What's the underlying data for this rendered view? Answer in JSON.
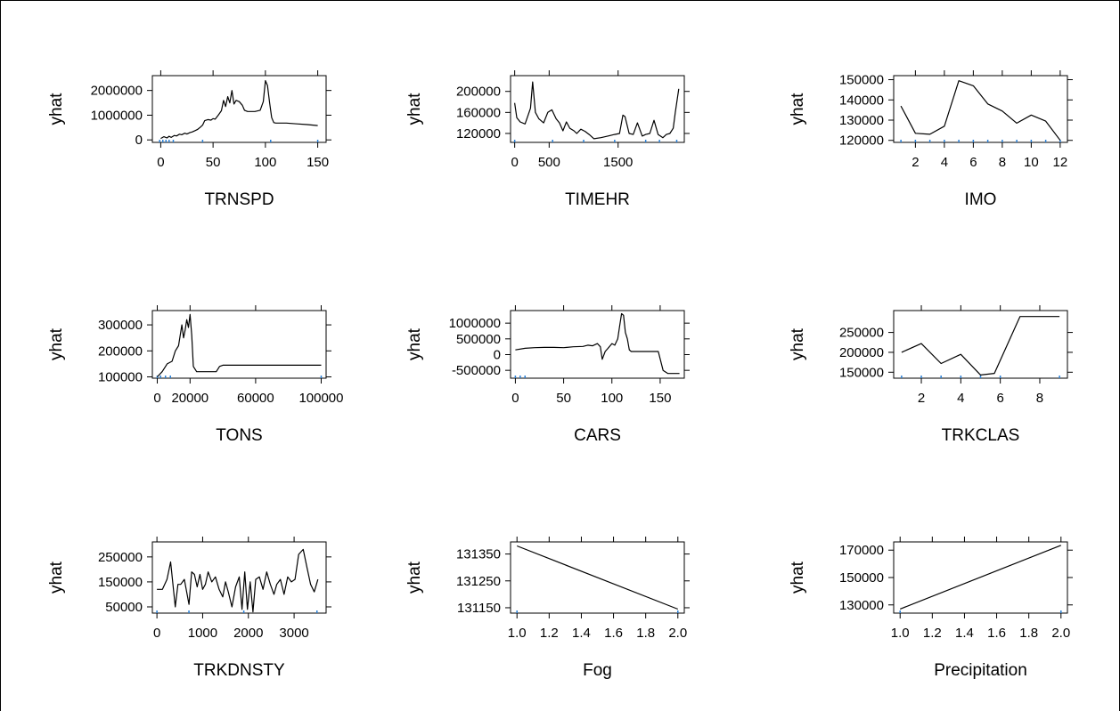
{
  "chart_data": [
    {
      "type": "line",
      "xlabel": "TRNSPD",
      "ylabel": "yhat",
      "xlim": [
        -8,
        158
      ],
      "ylim": [
        -100000,
        2600000
      ],
      "xticks": [
        0,
        50,
        100,
        150
      ],
      "xticklabels": [
        "0",
        "50",
        "100",
        "150"
      ],
      "yticks": [
        0,
        1000000,
        2000000
      ],
      "yticklabels": [
        "0",
        "1000000",
        "2000000"
      ],
      "x": [
        0,
        3,
        6,
        8,
        10,
        13,
        15,
        18,
        20,
        23,
        25,
        28,
        30,
        33,
        35,
        38,
        40,
        42,
        45,
        48,
        50,
        52,
        55,
        58,
        60,
        62,
        64,
        66,
        68,
        70,
        72,
        75,
        78,
        80,
        83,
        86,
        90,
        95,
        98,
        100,
        102,
        104,
        106,
        108,
        110,
        115,
        120,
        130,
        140,
        150
      ],
      "y": [
        60000,
        130000,
        80000,
        150000,
        100000,
        180000,
        160000,
        230000,
        210000,
        270000,
        240000,
        300000,
        320000,
        380000,
        420000,
        520000,
        600000,
        780000,
        820000,
        800000,
        860000,
        840000,
        1000000,
        1180000,
        1600000,
        1350000,
        1750000,
        1500000,
        2000000,
        1450000,
        1600000,
        1550000,
        1400000,
        1200000,
        1150000,
        1150000,
        1150000,
        1200000,
        1550000,
        2400000,
        2200000,
        1500000,
        900000,
        700000,
        680000,
        680000,
        680000,
        650000,
        620000,
        580000
      ],
      "rug": [
        -1,
        2,
        5,
        8,
        12,
        40,
        105,
        150
      ]
    },
    {
      "type": "line",
      "xlabel": "TIMEHR",
      "ylabel": "yhat",
      "xlim": [
        -60,
        2460
      ],
      "ylim": [
        103000,
        230000
      ],
      "xticks": [
        0,
        500,
        1500
      ],
      "xticklabels": [
        "0",
        "500",
        "1500"
      ],
      "yticks": [
        120000,
        160000,
        200000
      ],
      "yticklabels": [
        "120000",
        "160000",
        "200000"
      ],
      "x": [
        0,
        30,
        80,
        150,
        230,
        260,
        300,
        350,
        420,
        480,
        540,
        600,
        650,
        700,
        750,
        800,
        860,
        900,
        960,
        1020,
        1080,
        1150,
        1250,
        1350,
        1450,
        1520,
        1570,
        1600,
        1660,
        1720,
        1780,
        1850,
        1900,
        1960,
        2020,
        2080,
        2150,
        2200,
        2250,
        2300,
        2330,
        2380
      ],
      "y": [
        178000,
        150000,
        142000,
        138000,
        168000,
        218000,
        160000,
        148000,
        140000,
        160000,
        165000,
        148000,
        140000,
        125000,
        142000,
        130000,
        125000,
        120000,
        128000,
        124000,
        118000,
        110000,
        112000,
        115000,
        118000,
        120000,
        155000,
        152000,
        120000,
        118000,
        140000,
        115000,
        118000,
        120000,
        145000,
        118000,
        112000,
        118000,
        120000,
        130000,
        160000,
        205000
      ],
      "rug": [
        0,
        550,
        1000,
        1450,
        1900,
        2100,
        2350
      ]
    },
    {
      "type": "line",
      "xlabel": "IMO",
      "ylabel": "yhat",
      "xlim": [
        0.5,
        12.5
      ],
      "ylim": [
        119000,
        152000
      ],
      "xticks": [
        2,
        4,
        6,
        8,
        10,
        12
      ],
      "xticklabels": [
        "2",
        "4",
        "6",
        "8",
        "10",
        "12"
      ],
      "yticks": [
        120000,
        130000,
        140000,
        150000
      ],
      "yticklabels": [
        "120000",
        "130000",
        "140000",
        "150000"
      ],
      "x": [
        1,
        2,
        3,
        4,
        5,
        6,
        7,
        8,
        9,
        10,
        11,
        12
      ],
      "y": [
        137000,
        123500,
        123000,
        127000,
        149500,
        147000,
        138000,
        134500,
        128500,
        132500,
        129500,
        120000
      ],
      "rug": [
        1,
        2,
        3,
        4,
        5,
        6,
        7,
        8,
        9,
        10,
        11,
        12
      ]
    },
    {
      "type": "line",
      "xlabel": "TONS",
      "ylabel": "yhat",
      "xlim": [
        -3000,
        103000
      ],
      "ylim": [
        95000,
        355000
      ],
      "xticks": [
        0,
        20000,
        60000,
        100000
      ],
      "xticklabels": [
        "0",
        "20000",
        "60000",
        "100000"
      ],
      "yticks": [
        100000,
        200000,
        300000
      ],
      "yticklabels": [
        "100000",
        "200000",
        "300000"
      ],
      "x": [
        0,
        3000,
        6000,
        9000,
        11000,
        13000,
        15000,
        16000,
        17000,
        18000,
        19000,
        20000,
        21000,
        22000,
        24000,
        28000,
        32000,
        36000,
        38000,
        40000,
        50000,
        60000,
        80000,
        100000
      ],
      "y": [
        100000,
        120000,
        150000,
        160000,
        200000,
        220000,
        300000,
        250000,
        280000,
        320000,
        290000,
        340000,
        260000,
        140000,
        120000,
        120000,
        120000,
        120000,
        140000,
        145000,
        145000,
        145000,
        145000,
        145000
      ],
      "rug": [
        0,
        2000,
        5000,
        8000,
        100000
      ]
    },
    {
      "type": "line",
      "xlabel": "CARS",
      "ylabel": "yhat",
      "xlim": [
        -5,
        175
      ],
      "ylim": [
        -750000,
        1400000
      ],
      "xticks": [
        0,
        50,
        100,
        150
      ],
      "xticklabels": [
        "0",
        "50",
        "100",
        "150"
      ],
      "yticks": [
        -500000,
        0,
        500000,
        1000000
      ],
      "yticklabels": [
        "-500000",
        "0",
        "500000",
        "1000000"
      ],
      "x": [
        0,
        10,
        20,
        30,
        40,
        50,
        60,
        70,
        75,
        80,
        85,
        88,
        90,
        93,
        96,
        100,
        103,
        106,
        108,
        110,
        112,
        114,
        116,
        118,
        120,
        130,
        140,
        148,
        153,
        158,
        165,
        170
      ],
      "y": [
        150000,
        200000,
        220000,
        230000,
        230000,
        220000,
        250000,
        260000,
        300000,
        280000,
        350000,
        250000,
        -150000,
        100000,
        200000,
        350000,
        300000,
        500000,
        900000,
        1300000,
        1250000,
        700000,
        500000,
        150000,
        100000,
        100000,
        100000,
        100000,
        -500000,
        -600000,
        -600000,
        -600000
      ],
      "rug": [
        0,
        5,
        10
      ]
    },
    {
      "type": "line",
      "xlabel": "TRKCLAS",
      "ylabel": "yhat",
      "xlim": [
        0.6,
        9.4
      ],
      "ylim": [
        135000,
        305000
      ],
      "xticks": [
        2,
        4,
        6,
        8
      ],
      "xticklabels": [
        "2",
        "4",
        "6",
        "8"
      ],
      "yticks": [
        150000,
        200000,
        250000
      ],
      "yticklabels": [
        "150000",
        "200000",
        "250000"
      ],
      "x": [
        1,
        2,
        3,
        4,
        5,
        5.7,
        7,
        8,
        9
      ],
      "y": [
        200000,
        222000,
        172000,
        195000,
        143000,
        147000,
        290000,
        290000,
        290000
      ],
      "rug": [
        1,
        2,
        3,
        4,
        5,
        6,
        9
      ]
    },
    {
      "type": "line",
      "xlabel": "TRKDNSTY",
      "ylabel": "yhat",
      "xlim": [
        -100,
        3700
      ],
      "ylim": [
        25000,
        310000
      ],
      "xticks": [
        0,
        1000,
        2000,
        3000
      ],
      "xticklabels": [
        "0",
        "1000",
        "2000",
        "3000"
      ],
      "yticks": [
        50000,
        150000,
        250000
      ],
      "yticklabels": [
        "50000",
        "150000",
        "250000"
      ],
      "x": [
        0,
        120,
        220,
        300,
        400,
        460,
        520,
        600,
        700,
        760,
        820,
        880,
        940,
        1000,
        1060,
        1120,
        1200,
        1280,
        1360,
        1440,
        1500,
        1560,
        1640,
        1720,
        1800,
        1860,
        1920,
        1980,
        2040,
        2100,
        2160,
        2240,
        2320,
        2400,
        2480,
        2560,
        2620,
        2700,
        2780,
        2860,
        2940,
        3020,
        3100,
        3200,
        3280,
        3360,
        3440,
        3520
      ],
      "y": [
        120000,
        120000,
        160000,
        230000,
        50000,
        140000,
        140000,
        160000,
        60000,
        190000,
        180000,
        130000,
        180000,
        120000,
        140000,
        190000,
        150000,
        170000,
        120000,
        90000,
        150000,
        110000,
        50000,
        130000,
        170000,
        40000,
        190000,
        40000,
        150000,
        30000,
        160000,
        170000,
        120000,
        190000,
        140000,
        100000,
        140000,
        160000,
        100000,
        170000,
        150000,
        160000,
        260000,
        280000,
        210000,
        140000,
        110000,
        160000
      ],
      "rug": [
        0,
        700,
        1900,
        3500
      ]
    },
    {
      "type": "line",
      "xlabel": "Fog",
      "ylabel": "yhat",
      "xlim": [
        0.96,
        2.04
      ],
      "ylim": [
        131130,
        131395
      ],
      "xticks": [
        1.0,
        1.2,
        1.4,
        1.6,
        1.8,
        2.0
      ],
      "xticklabels": [
        "1.0",
        "1.2",
        "1.4",
        "1.6",
        "1.8",
        "2.0"
      ],
      "yticks": [
        131150,
        131250,
        131350
      ],
      "yticklabels": [
        "131150",
        "131250",
        "131350"
      ],
      "x": [
        1.0,
        2.0
      ],
      "y": [
        131380,
        131145
      ],
      "rug": [
        1.0,
        2.0
      ]
    },
    {
      "type": "line",
      "xlabel": "Precipitation",
      "ylabel": "yhat",
      "xlim": [
        0.96,
        2.04
      ],
      "ylim": [
        124000,
        176000
      ],
      "xticks": [
        1.0,
        1.2,
        1.4,
        1.6,
        1.8,
        2.0
      ],
      "xticklabels": [
        "1.0",
        "1.2",
        "1.4",
        "1.6",
        "1.8",
        "2.0"
      ],
      "yticks": [
        130000,
        150000,
        170000
      ],
      "yticklabels": [
        "130000",
        "150000",
        "170000"
      ],
      "x": [
        1.0,
        2.0
      ],
      "y": [
        127000,
        173500
      ],
      "rug": [
        1.0,
        2.0
      ]
    }
  ]
}
